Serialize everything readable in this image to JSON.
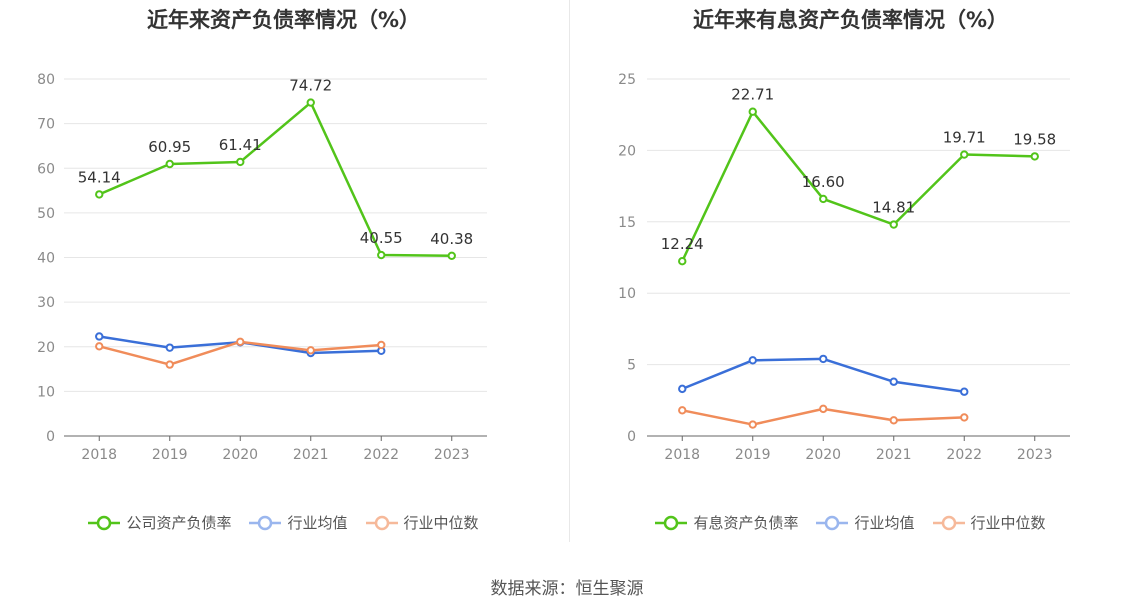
{
  "source_text": "数据来源：恒生聚源",
  "chart_data": [
    {
      "type": "line",
      "title": "近年来资产负债率情况（%）",
      "categories": [
        "2018",
        "2019",
        "2020",
        "2021",
        "2022",
        "2023"
      ],
      "ylim": [
        0,
        80
      ],
      "yticks": [
        0,
        10,
        20,
        30,
        40,
        50,
        60,
        70,
        80
      ],
      "grid": true,
      "legend_position": "bottom",
      "series": [
        {
          "name": "公司资产负债率",
          "color": "#52c41a",
          "values": [
            54.14,
            60.95,
            61.41,
            74.72,
            40.55,
            40.38
          ],
          "labels": [
            "54.14",
            "60.95",
            "61.41",
            "74.72",
            "40.55",
            "40.38"
          ]
        },
        {
          "name": "行业均值",
          "color": "#3a6fd8",
          "values": [
            22.3,
            19.8,
            21.0,
            18.6,
            19.1,
            null
          ]
        },
        {
          "name": "行业中位数",
          "color": "#f08c5a",
          "values": [
            20.1,
            16.0,
            21.1,
            19.2,
            20.4,
            null
          ]
        }
      ]
    },
    {
      "type": "line",
      "title": "近年来有息资产负债率情况（%）",
      "categories": [
        "2018",
        "2019",
        "2020",
        "2021",
        "2022",
        "2023"
      ],
      "ylim": [
        0,
        25
      ],
      "yticks": [
        0,
        5,
        10,
        15,
        20,
        25
      ],
      "grid": true,
      "legend_position": "bottom",
      "series": [
        {
          "name": "有息资产负债率",
          "color": "#52c41a",
          "values": [
            12.24,
            22.71,
            16.6,
            14.81,
            19.71,
            19.58
          ],
          "labels": [
            "12.24",
            "22.71",
            "16.60",
            "14.81",
            "19.71",
            "19.58"
          ]
        },
        {
          "name": "行业均值",
          "color": "#3a6fd8",
          "values": [
            3.3,
            5.3,
            5.4,
            3.8,
            3.1,
            null
          ]
        },
        {
          "name": "行业中位数",
          "color": "#f08c5a",
          "values": [
            1.8,
            0.8,
            1.9,
            1.1,
            1.3,
            null
          ]
        }
      ]
    }
  ]
}
